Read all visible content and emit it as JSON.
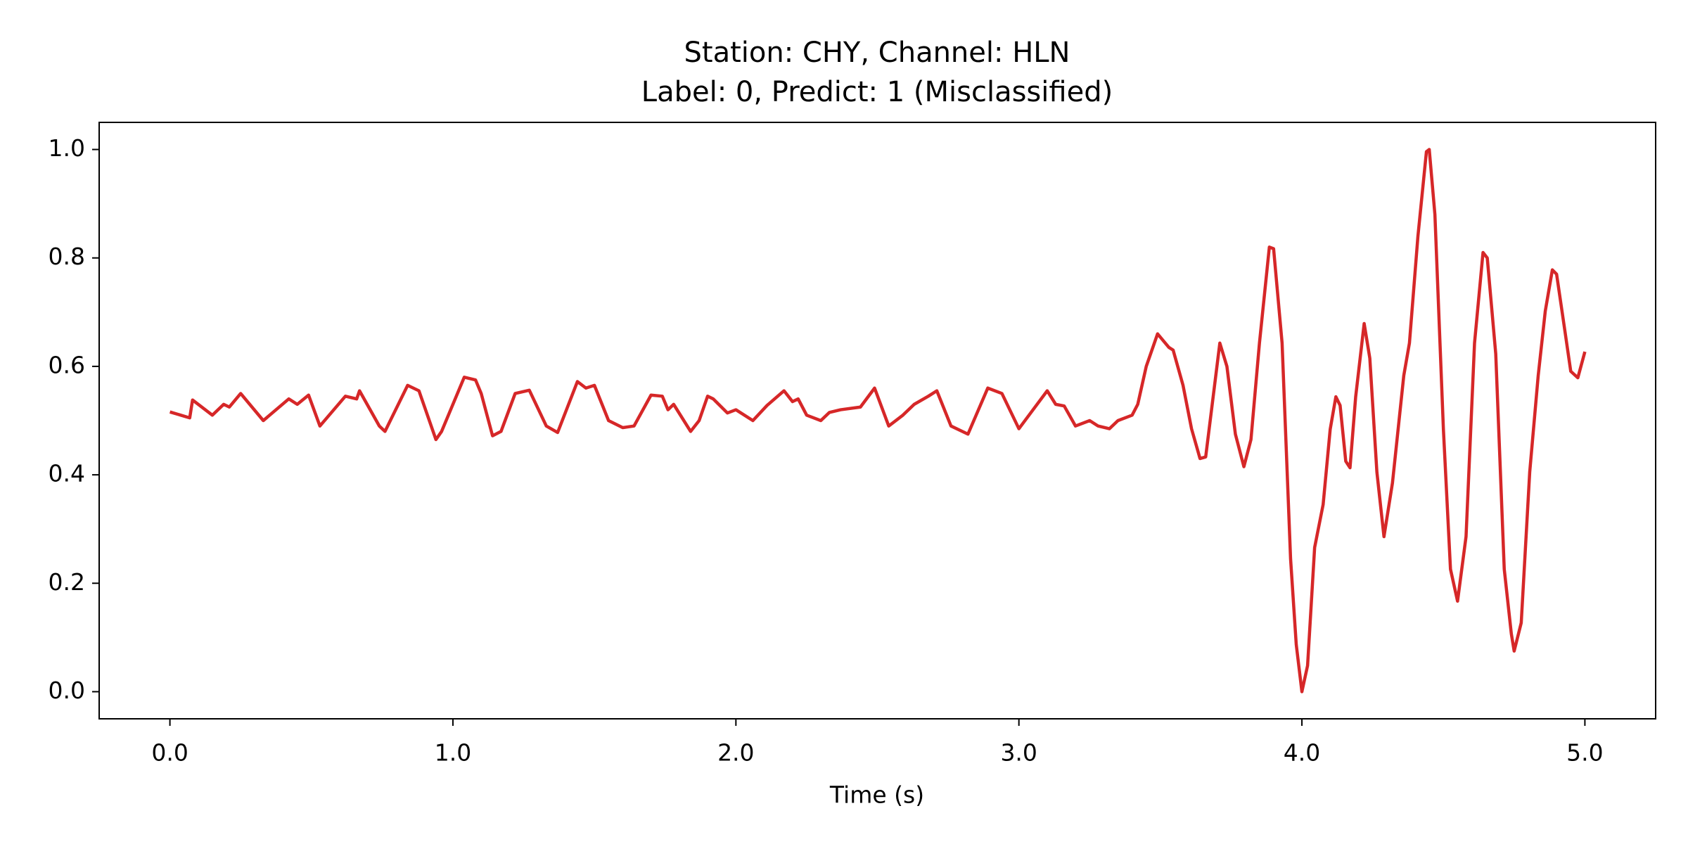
{
  "chart_data": {
    "type": "line",
    "title": [
      "Station: CHY, Channel: HLN",
      "Label: 0, Predict: 1 (Misclassified)"
    ],
    "x_label": "Time (s)",
    "color": "#d62728",
    "x": [
      0,
      0.07,
      0.08,
      0.15,
      0.19,
      0.21,
      0.25,
      0.33,
      0.42,
      0.45,
      0.49,
      0.53,
      0.62,
      0.66,
      0.67,
      0.74,
      0.76,
      0.84,
      0.88,
      0.94,
      0.96,
      1.04,
      1.08,
      1.1,
      1.14,
      1.17,
      1.22,
      1.27,
      1.33,
      1.37,
      1.44,
      1.47,
      1.5,
      1.55,
      1.6,
      1.64,
      1.7,
      1.74,
      1.76,
      1.78,
      1.84,
      1.87,
      1.9,
      1.92,
      1.97,
      2.0,
      2.06,
      2.11,
      2.17,
      2.2,
      2.22,
      2.25,
      2.3,
      2.33,
      2.37,
      2.44,
      2.49,
      2.54,
      2.59,
      2.63,
      2.68,
      2.71,
      2.76,
      2.82,
      2.89,
      2.94,
      3.0,
      3.05,
      3.1,
      3.13,
      3.16,
      3.2,
      3.25,
      3.28,
      3.32,
      3.35,
      3.4,
      3.42,
      3.45,
      3.49,
      3.53,
      3.545,
      3.58,
      3.61,
      3.64,
      3.66,
      3.71,
      3.735,
      3.765,
      3.795,
      3.82,
      3.85,
      3.885,
      3.9,
      3.93,
      3.96,
      3.98,
      4.0,
      4.02,
      4.045,
      4.075,
      4.1,
      4.12,
      4.135,
      4.155,
      4.17,
      4.19,
      4.22,
      4.24,
      4.265,
      4.29,
      4.32,
      4.36,
      4.38,
      4.41,
      4.44,
      4.45,
      4.47,
      4.5,
      4.525,
      4.55,
      4.58,
      4.61,
      4.64,
      4.655,
      4.685,
      4.715,
      4.74,
      4.75,
      4.775,
      4.805,
      4.835,
      4.86,
      4.885,
      4.9,
      4.93,
      4.95,
      4.975,
      5.0
    ],
    "values": [
      0.516,
      0.505,
      0.538,
      0.51,
      0.53,
      0.525,
      0.55,
      0.5,
      0.54,
      0.53,
      0.547,
      0.49,
      0.545,
      0.54,
      0.555,
      0.49,
      0.48,
      0.565,
      0.555,
      0.465,
      0.48,
      0.58,
      0.575,
      0.55,
      0.472,
      0.48,
      0.55,
      0.556,
      0.49,
      0.478,
      0.572,
      0.56,
      0.565,
      0.5,
      0.487,
      0.49,
      0.547,
      0.545,
      0.52,
      0.53,
      0.48,
      0.5,
      0.545,
      0.54,
      0.514,
      0.52,
      0.5,
      0.528,
      0.555,
      0.535,
      0.54,
      0.51,
      0.5,
      0.515,
      0.52,
      0.525,
      0.56,
      0.49,
      0.51,
      0.53,
      0.545,
      0.555,
      0.49,
      0.475,
      0.56,
      0.55,
      0.485,
      0.52,
      0.555,
      0.53,
      0.527,
      0.49,
      0.5,
      0.49,
      0.485,
      0.5,
      0.51,
      0.53,
      0.6,
      0.66,
      0.635,
      0.63,
      0.565,
      0.485,
      0.43,
      0.433,
      0.643,
      0.6,
      0.475,
      0.415,
      0.465,
      0.643,
      0.82,
      0.817,
      0.643,
      0.245,
      0.087,
      0.0,
      0.048,
      0.266,
      0.345,
      0.484,
      0.544,
      0.528,
      0.425,
      0.413,
      0.544,
      0.679,
      0.615,
      0.405,
      0.286,
      0.385,
      0.583,
      0.643,
      0.84,
      0.996,
      1.0,
      0.88,
      0.484,
      0.226,
      0.167,
      0.286,
      0.643,
      0.81,
      0.8,
      0.623,
      0.226,
      0.107,
      0.075,
      0.127,
      0.405,
      0.583,
      0.702,
      0.778,
      0.77,
      0.663,
      0.591,
      0.579,
      0.627
    ],
    "xlim": [
      -0.25,
      5.25
    ],
    "xticks": [
      {
        "value": 0,
        "label": "0.0"
      },
      {
        "value": 1,
        "label": "1.0"
      },
      {
        "value": 2,
        "label": "2.0"
      },
      {
        "value": 3,
        "label": "3.0"
      },
      {
        "value": 4,
        "label": "4.0"
      },
      {
        "value": 5,
        "label": "5.0"
      }
    ],
    "ylim": [
      -0.05,
      1.05
    ],
    "yticks": [
      {
        "value": 0,
        "label": "0.0"
      },
      0.2,
      0.4,
      0.6,
      0.8,
      {
        "value": 1,
        "label": "1.0"
      }
    ],
    "grid": false
  }
}
